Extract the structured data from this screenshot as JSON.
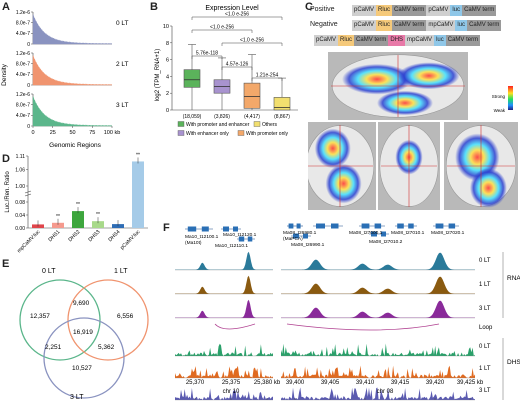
{
  "panel_labels": {
    "a": "A",
    "b": "B",
    "c": "C",
    "d": "D",
    "e": "E",
    "f": "F"
  },
  "panel_a": {
    "ylabel": "Density",
    "xlabel": "Genomic Regions",
    "yticks": [
      "1.2e-6",
      "8.0e-7",
      "4.0e-7",
      "0"
    ],
    "xticks": [
      "0",
      "25",
      "50",
      "75",
      "100 kb"
    ],
    "series": [
      {
        "name": "0 LT",
        "color": "#8a93c0"
      },
      {
        "name": "2 LT",
        "color": "#f0946f"
      },
      {
        "name": "3 LT",
        "color": "#5bb68b"
      }
    ]
  },
  "panel_b": {
    "chart_data": {
      "type": "box",
      "title": "Expression Level",
      "ylabel": "log2 (TPM_RNA+1)",
      "yticks": [
        "0",
        "2",
        "4",
        "6",
        "8",
        "10"
      ],
      "ylim": [
        0,
        10
      ],
      "groups": [
        {
          "n": "(18,059)",
          "color": "#5bb35b",
          "q1": 2.7,
          "median": 3.6,
          "q3": 4.8,
          "lo": 0.0,
          "hi": 7.8
        },
        {
          "n": "(3,826)",
          "color": "#a893cf",
          "q1": 2.0,
          "median": 2.8,
          "q3": 3.6,
          "lo": 0.0,
          "hi": 6.2
        },
        {
          "n": "(4,417)",
          "color": "#f3a86a",
          "q1": 0.2,
          "median": 1.6,
          "q3": 3.2,
          "lo": 0.0,
          "hi": 6.6
        },
        {
          "n": "(8,867)",
          "color": "#f2df6f",
          "q1": 0.0,
          "median": 0.3,
          "q3": 1.5,
          "lo": 0.0,
          "hi": 3.8
        }
      ],
      "pvalues": [
        "<1.0 e-256",
        "<1.0 e-256",
        "<1.0 e-256",
        "5.76e-118",
        "4.57e-126",
        "1.21e-254"
      ],
      "legend": [
        "With promoter and enhancer",
        "Others",
        "With enhancer only",
        "With promoter only"
      ]
    }
  },
  "panel_c": {
    "rows": [
      {
        "label": "Positive",
        "segs": [
          {
            "t": "pCaMV",
            "c": "#cfcfcf"
          },
          {
            "t": "Rluc",
            "c": "#f5c97a"
          },
          {
            "t": "CaMV term",
            "c": "#9a9a9a"
          },
          {
            "t": "pCaMV",
            "c": "#cfcfcf"
          },
          {
            "t": "luc",
            "c": "#8fc7e8"
          },
          {
            "t": "CaMV term",
            "c": "#9a9a9a"
          }
        ]
      },
      {
        "label": "Negative",
        "segs": [
          {
            "t": "pCaMV",
            "c": "#cfcfcf"
          },
          {
            "t": "Rluc",
            "c": "#f5c97a"
          },
          {
            "t": "CaMV term",
            "c": "#9a9a9a"
          },
          {
            "t": "mpCaMV",
            "c": "#cfcfcf"
          },
          {
            "t": "luc",
            "c": "#8fc7e8"
          },
          {
            "t": "CaMV term",
            "c": "#9a9a9a"
          }
        ]
      },
      {
        "label": "",
        "segs": [
          {
            "t": "pCaMV",
            "c": "#cfcfcf"
          },
          {
            "t": "Rluc",
            "c": "#f5c97a"
          },
          {
            "t": "CaMV term",
            "c": "#9a9a9a"
          },
          {
            "t": "DHS",
            "c": "#e879a8"
          },
          {
            "t": "mpCaMV",
            "c": "#cfcfcf"
          },
          {
            "t": "luc",
            "c": "#8fc7e8"
          },
          {
            "t": "CaMV term",
            "c": "#9a9a9a"
          }
        ]
      }
    ],
    "scale_top": "Strong",
    "scale_bottom": "Weak"
  },
  "panel_d": {
    "chart_data": {
      "type": "bar",
      "ylabel": "Luc./Ren. Ratio",
      "yticks": [
        "0.00",
        "0.04",
        "0.08",
        "1.00",
        "1.06",
        "1.11"
      ],
      "categories": [
        "mpCaMV:luc",
        "DHS1",
        "DHS2",
        "DHS3",
        "DHS4",
        "pCaMV:luc"
      ],
      "values": [
        0.011,
        0.016,
        0.052,
        0.021,
        0.012,
        1.09
      ],
      "colors": [
        "#e0454b",
        "#f59a8e",
        "#3da63d",
        "#a8d98a",
        "#2e6db5",
        "#a5cbe8"
      ],
      "sig": [
        "",
        "**",
        "**",
        "**",
        "",
        "**"
      ]
    }
  },
  "panel_e": {
    "sets": [
      {
        "name": "0 LT",
        "color": "#5bb68b"
      },
      {
        "name": "1 LT",
        "color": "#f0946f"
      },
      {
        "name": "3 LT",
        "color": "#8a93c0"
      }
    ],
    "counts": {
      "only0": "12,357",
      "only1": "6,556",
      "only3": "10,527",
      "a01": "9,690",
      "a03": "2,251",
      "a13": "5,362",
      "all": "16,919"
    }
  },
  "panel_f": {
    "genes_left": [
      "Ma10_t12100.1",
      "(Ma10t)",
      "Ma10_t12120.1",
      "Ma10_t12110.1"
    ],
    "genes_right": [
      "Ma08_t26980.1",
      "(MaPCA)",
      "Ma08_t26990.1",
      "Ma08_t27000.1",
      "Ma08_t27010.1",
      "Ma08_t27010.2",
      "Ma08_t27020.1"
    ],
    "track_labels": [
      "0 LT",
      "1 LT",
      "3 LT",
      "Loop",
      "0 LT",
      "1 LT",
      "3 LT"
    ],
    "group_labels": {
      "rna": "RNA",
      "dhs": "DHS"
    },
    "xticks_left": [
      "25,370",
      "25,375",
      "25,380 kb"
    ],
    "xticks_right": [
      "39,400",
      "39,405",
      "39,410",
      "39,415",
      "39,420",
      "39,425 kb"
    ],
    "chr_left": "chr 10",
    "chr_right": "chr 08"
  }
}
